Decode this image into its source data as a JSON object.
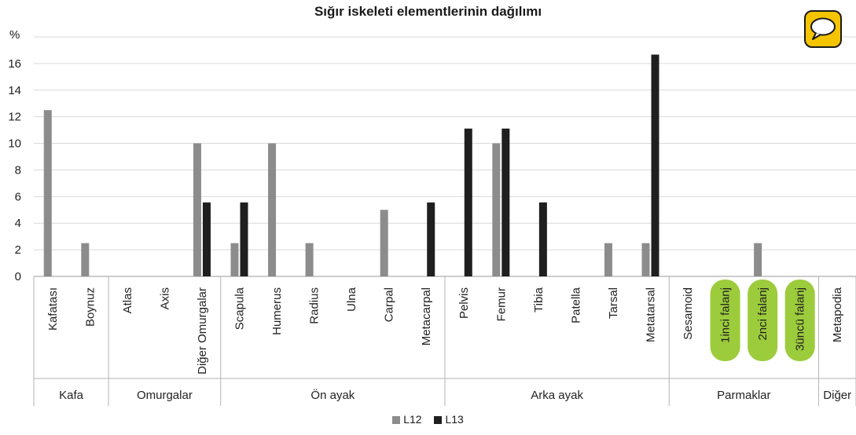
{
  "chart_data": {
    "type": "bar",
    "title": "Sığır iskeleti elementlerinin dağılımı",
    "ylabel": "%",
    "ylim": [
      0,
      18
    ],
    "yticks": [
      0,
      2,
      4,
      6,
      8,
      10,
      12,
      14,
      16
    ],
    "categories": [
      "Kafatası",
      "Boynuz",
      "Atlas",
      "Axis",
      "Diğer Omurgalar",
      "Scapula",
      "Humerus",
      "Radius",
      "Ulna",
      "Carpal",
      "Metacarpal",
      "Pelvis",
      "Femur",
      "Tibia",
      "Patella",
      "Tarsal",
      "Metatarsal",
      "Sesamoid",
      "1inci falanj",
      "2nci falanj",
      "3üncü falanj",
      "Metapodia"
    ],
    "highlighted_categories": [
      "1inci falanj",
      "2nci falanj",
      "3üncü falanj"
    ],
    "groups": [
      {
        "label": "Kafa",
        "categories": [
          "Kafatası",
          "Boynuz"
        ]
      },
      {
        "label": "Omurgalar",
        "categories": [
          "Atlas",
          "Axis",
          "Diğer Omurgalar"
        ]
      },
      {
        "label": "Ön ayak",
        "categories": [
          "Scapula",
          "Humerus",
          "Radius",
          "Ulna",
          "Carpal",
          "Metacarpal"
        ]
      },
      {
        "label": "Arka ayak",
        "categories": [
          "Pelvis",
          "Femur",
          "Tibia",
          "Patella",
          "Tarsal",
          "Metatarsal"
        ]
      },
      {
        "label": "Parmaklar",
        "categories": [
          "Sesamoid",
          "1inci falanj",
          "2nci falanj",
          "3üncü falanj"
        ]
      },
      {
        "label": "Diğer",
        "categories": [
          "Metapodia"
        ]
      }
    ],
    "series": [
      {
        "name": "L12",
        "color": "#8c8c8c",
        "values": [
          12.5,
          2.5,
          0,
          0,
          10,
          2.5,
          10,
          2.5,
          0,
          5,
          0,
          0,
          10,
          0,
          0,
          2.5,
          2.5,
          0,
          0,
          2.5,
          0,
          0
        ]
      },
      {
        "name": "L13",
        "color": "#1f1f1f",
        "values": [
          0,
          0,
          0,
          0,
          5.56,
          5.56,
          0,
          0,
          0,
          0,
          5.56,
          11.11,
          11.11,
          5.56,
          0,
          0,
          16.67,
          0,
          0,
          0,
          0,
          0
        ]
      }
    ],
    "grid": true,
    "legend": "bottom",
    "highlight_color": "#9ccc3c"
  },
  "ui": {
    "comment_icon": "speech-bubble-icon",
    "comment_button_color": "#f5c400"
  }
}
